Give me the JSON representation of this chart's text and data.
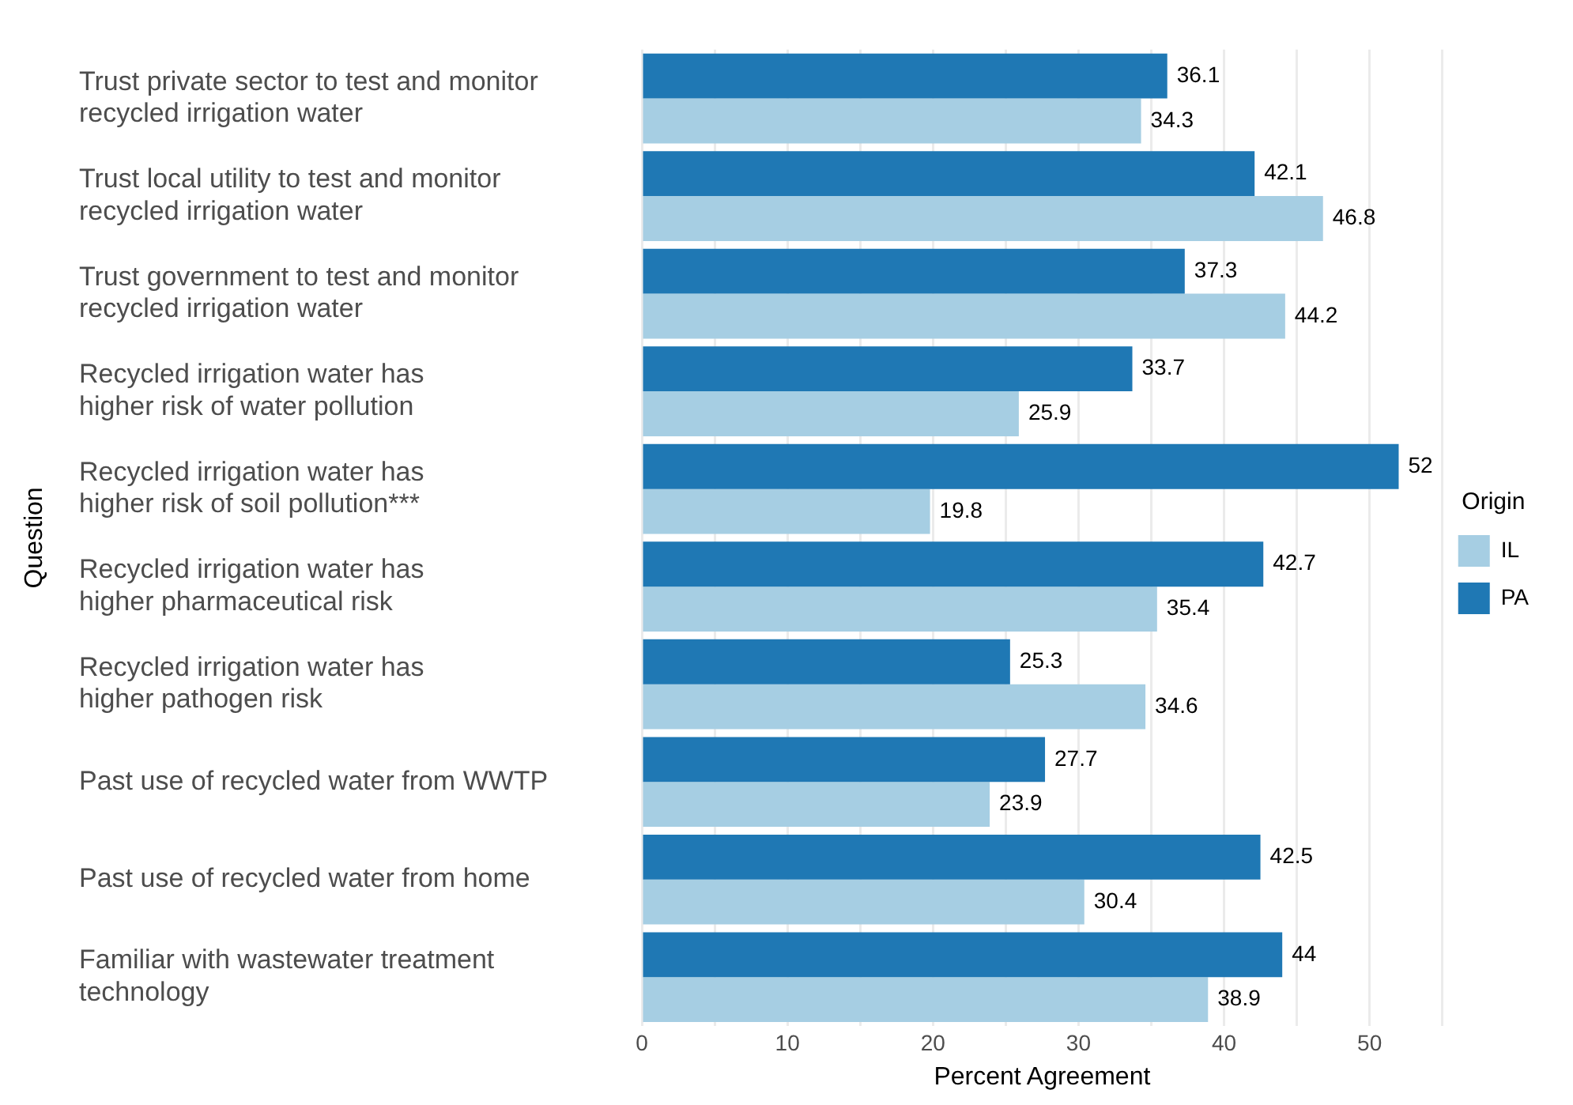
{
  "chart_data": {
    "type": "bar",
    "orientation": "horizontal",
    "xlabel": "Percent Agreement",
    "ylabel": "Question",
    "legend_title": "Origin",
    "legend": "right",
    "grid": "x",
    "data_labels": true,
    "categories": [
      "Trust private sector to test and monitor\nrecycled irrigation water",
      "Trust local utility to test and monitor\nrecycled irrigation water",
      "Trust government to test and monitor\nrecycled irrigation water",
      "Recycled irrigation water has\nhigher risk of water pollution",
      "Recycled irrigation water has\nhigher risk of soil pollution***",
      "Recycled irrigation water has\nhigher pharmaceutical risk",
      "Recycled irrigation water has\nhigher pathogen risk",
      "Past use of recycled water from WWTP",
      "Past use of recycled water from home",
      "Familiar with wastewater treatment\ntechnology"
    ],
    "series": [
      {
        "name": "IL",
        "color": "#a6cee3",
        "values": [
          34.3,
          46.8,
          44.2,
          25.9,
          19.8,
          35.4,
          34.6,
          23.9,
          30.4,
          38.9
        ]
      },
      {
        "name": "PA",
        "color": "#1f78b4",
        "values": [
          36.1,
          42.1,
          37.3,
          33.7,
          52,
          42.7,
          25.3,
          27.7,
          42.5,
          44
        ]
      }
    ],
    "xlim": [
      0,
      55
    ],
    "xticks": [
      0,
      {
        "value": 5,
        "label": null
      },
      10,
      {
        "value": 15,
        "label": null
      },
      20,
      {
        "value": 25,
        "label": null
      },
      30,
      {
        "value": 35,
        "label": null
      },
      40,
      {
        "value": 45,
        "label": null
      },
      50,
      {
        "value": 55,
        "label": null
      }
    ]
  }
}
